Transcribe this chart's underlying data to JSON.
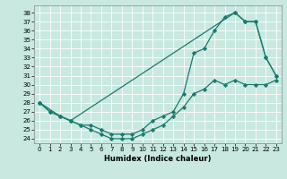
{
  "line1_x": [
    0,
    1,
    2,
    3,
    4,
    5,
    6,
    7,
    8,
    9,
    10,
    11,
    12,
    13,
    14,
    15,
    16,
    17,
    18,
    19,
    20,
    21,
    22,
    23
  ],
  "line1_y": [
    28,
    27,
    26.5,
    26,
    25.5,
    25.5,
    25,
    24.5,
    24.5,
    24.5,
    25,
    26,
    26.5,
    27,
    29,
    33.5,
    34,
    36,
    37.5,
    38,
    37,
    37,
    33,
    31
  ],
  "line2_x": [
    0,
    2,
    3,
    19,
    20,
    21,
    22,
    23
  ],
  "line2_y": [
    28,
    26.5,
    26,
    38,
    37,
    37,
    33,
    31
  ],
  "line3_x": [
    0,
    1,
    2,
    3,
    4,
    5,
    6,
    7,
    8,
    9,
    10,
    11,
    12,
    13,
    14,
    15,
    16,
    17,
    18,
    19,
    20,
    21,
    22,
    23
  ],
  "line3_y": [
    28,
    27,
    26.5,
    26,
    25.5,
    25,
    24.5,
    24,
    24,
    24,
    24.5,
    25,
    25.5,
    26.5,
    27.5,
    29,
    29.5,
    30.5,
    30,
    30.5,
    30,
    30,
    30,
    30.5
  ],
  "color": "#1a7a6e",
  "bg_color": "#c8e8e0",
  "grid_color": "#ffffff",
  "xlabel": "Humidex (Indice chaleur)",
  "xlim": [
    -0.5,
    23.5
  ],
  "ylim": [
    23.5,
    38.8
  ],
  "yticks": [
    24,
    25,
    26,
    27,
    28,
    29,
    30,
    31,
    32,
    33,
    34,
    35,
    36,
    37,
    38
  ],
  "xticks": [
    0,
    1,
    2,
    3,
    4,
    5,
    6,
    7,
    8,
    9,
    10,
    11,
    12,
    13,
    14,
    15,
    16,
    17,
    18,
    19,
    20,
    21,
    22,
    23
  ],
  "marker": "D",
  "markersize": 2.2,
  "linewidth": 0.9,
  "tick_fontsize": 5.0,
  "xlabel_fontsize": 6.0
}
